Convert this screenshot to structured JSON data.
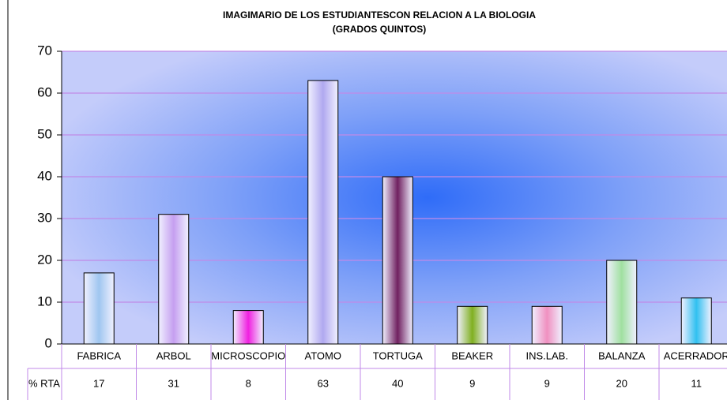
{
  "chart_data": {
    "type": "bar",
    "title": [
      "IMAGIMARIO DE LOS ESTUDIANTESCON RELACION A LA BIOLOGIA",
      "(GRADOS QUINTOS)"
    ],
    "categories": [
      "FABRICA",
      "ARBOL",
      "MICROSCOPIO",
      "ATOMO",
      "TORTUGA",
      "BEAKER",
      "INS.LAB.",
      "BALANZA",
      "ACERRADOR"
    ],
    "series": [
      {
        "name": "% RTA",
        "values": [
          17,
          31,
          8,
          63,
          40,
          9,
          9,
          20,
          11
        ],
        "colors": [
          "#9fc6f0",
          "#c59ff0",
          "#f020e0",
          "#b0a8f0",
          "#702060",
          "#80b020",
          "#f090c0",
          "#a0e0a0",
          "#30c0f0"
        ]
      }
    ],
    "ylim": [
      0,
      70
    ],
    "yticks": [
      0,
      10,
      20,
      30,
      40,
      50,
      60,
      70
    ],
    "grid": true
  }
}
